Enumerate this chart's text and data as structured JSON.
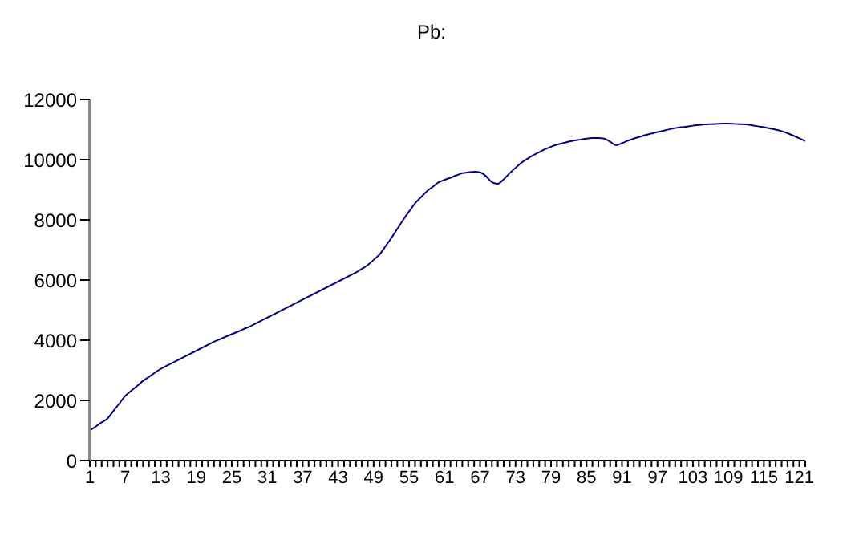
{
  "chart_data": {
    "type": "line",
    "title": "Pb:",
    "categories": [
      "1",
      null,
      null,
      null,
      null,
      null,
      "7",
      null,
      null,
      null,
      null,
      null,
      "13",
      null,
      null,
      null,
      null,
      null,
      "19",
      null,
      null,
      null,
      null,
      null,
      "25",
      null,
      null,
      null,
      null,
      null,
      "31",
      null,
      null,
      null,
      null,
      null,
      "37",
      null,
      null,
      null,
      null,
      null,
      "43",
      null,
      null,
      null,
      null,
      null,
      "49",
      null,
      null,
      null,
      null,
      null,
      "55",
      null,
      null,
      null,
      null,
      null,
      "61",
      null,
      null,
      null,
      null,
      null,
      "67",
      null,
      null,
      null,
      null,
      null,
      "73",
      null,
      null,
      null,
      null,
      null,
      "79",
      null,
      null,
      null,
      null,
      null,
      "85",
      null,
      null,
      null,
      null,
      null,
      "91",
      null,
      null,
      null,
      null,
      null,
      "97",
      null,
      null,
      null,
      null,
      null,
      "103",
      null,
      null,
      null,
      null,
      null,
      "109",
      null,
      null,
      null,
      null,
      null,
      "115",
      null,
      null,
      null,
      null,
      null,
      "121",
      null
    ],
    "series": [
      {
        "color": "#000080",
        "values": [
          1000,
          1130,
          1270,
          1400,
          1650,
          1900,
          2150,
          2320,
          2480,
          2650,
          2780,
          2920,
          3050,
          3150,
          3250,
          3350,
          3450,
          3550,
          3650,
          3750,
          3850,
          3950,
          4030,
          4120,
          4200,
          4280,
          4370,
          4450,
          4550,
          4650,
          4750,
          4850,
          4950,
          5050,
          5150,
          5250,
          5350,
          5450,
          5550,
          5650,
          5750,
          5850,
          5950,
          6050,
          6150,
          6250,
          6370,
          6500,
          6670,
          6850,
          7120,
          7400,
          7700,
          8000,
          8280,
          8550,
          8750,
          8950,
          9100,
          9250,
          9330,
          9400,
          9480,
          9550,
          9580,
          9600,
          9580,
          9450,
          9250,
          9200,
          9350,
          9550,
          9730,
          9900,
          10030,
          10150,
          10250,
          10350,
          10430,
          10500,
          10550,
          10600,
          10640,
          10670,
          10700,
          10720,
          10720,
          10700,
          10600,
          10480,
          10550,
          10630,
          10700,
          10760,
          10820,
          10870,
          10920,
          10960,
          11010,
          11050,
          11080,
          11100,
          11130,
          11150,
          11170,
          11180,
          11190,
          11200,
          11200,
          11190,
          11180,
          11170,
          11140,
          11110,
          11080,
          11040,
          11000,
          10950,
          10880,
          10800,
          10710,
          10620
        ]
      }
    ],
    "ylim": [
      0,
      12000
    ],
    "yticks": [
      0,
      2000,
      4000,
      6000,
      8000,
      10000,
      12000
    ],
    "grid": false,
    "marker": "none",
    "line_style": "solid"
  }
}
